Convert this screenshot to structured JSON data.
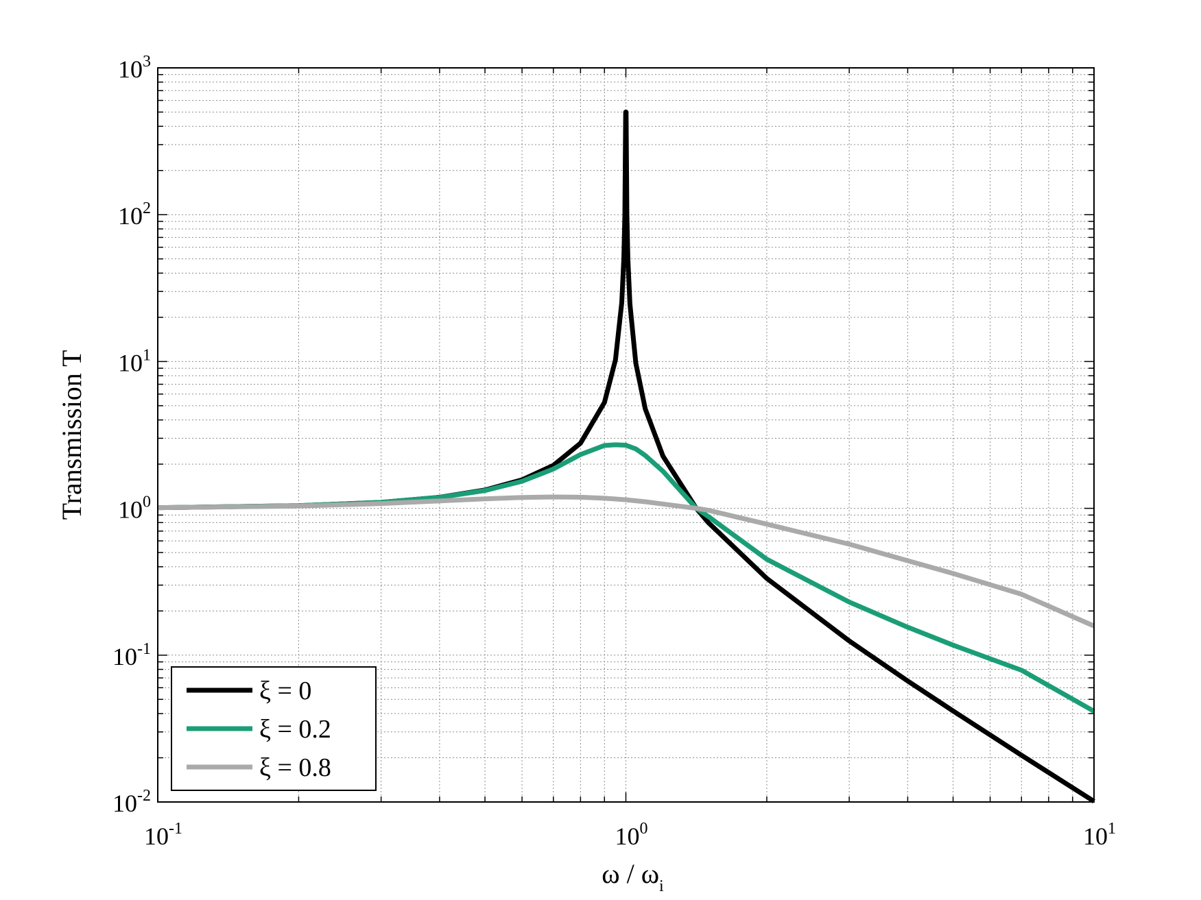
{
  "chart_data": {
    "type": "line",
    "xscale": "log",
    "yscale": "log",
    "xlim": [
      0.1,
      10
    ],
    "ylim": [
      0.01,
      1000
    ],
    "grid": true,
    "minor_grid": true,
    "legend_position": "bottom-left",
    "xlabel": "ω / ω",
    "xlabel_subscript": "i",
    "ylabel": "Transmission T",
    "x_ticks": [
      {
        "base": "10",
        "exp": "-1",
        "value": 0.1
      },
      {
        "base": "10",
        "exp": "0",
        "value": 1
      },
      {
        "base": "10",
        "exp": "1",
        "value": 10
      }
    ],
    "y_ticks": [
      {
        "base": "10",
        "exp": "-2",
        "value": 0.01
      },
      {
        "base": "10",
        "exp": "-1",
        "value": 0.1
      },
      {
        "base": "10",
        "exp": "0",
        "value": 1
      },
      {
        "base": "10",
        "exp": "1",
        "value": 10
      },
      {
        "base": "10",
        "exp": "2",
        "value": 100
      },
      {
        "base": "10",
        "exp": "3",
        "value": 1000
      }
    ],
    "series": [
      {
        "name": "ξ = 0",
        "xi": 0,
        "color": "#000000",
        "x": [
          0.1,
          0.2,
          0.3,
          0.4,
          0.5,
          0.6,
          0.7,
          0.8,
          0.9,
          0.95,
          0.98,
          0.99,
          0.995,
          0.999,
          1.0,
          1.001,
          1.005,
          1.01,
          1.02,
          1.05,
          1.1,
          1.2,
          1.414,
          1.5,
          2,
          3,
          4,
          5,
          7,
          10
        ],
        "y": [
          1.01,
          1.042,
          1.099,
          1.19,
          1.333,
          1.563,
          1.961,
          2.778,
          5.263,
          10.26,
          25.25,
          50.25,
          100.3,
          500,
          500,
          500,
          99.8,
          49.75,
          24.75,
          9.76,
          4.76,
          2.27,
          1.0,
          0.8,
          0.333,
          0.125,
          0.0667,
          0.0417,
          0.0208,
          0.0101
        ]
      },
      {
        "name": "ξ = 0.2",
        "xi": 0.2,
        "color": "#1b9e77",
        "x": [
          0.1,
          0.2,
          0.3,
          0.4,
          0.5,
          0.6,
          0.7,
          0.8,
          0.9,
          0.95,
          1.0,
          1.05,
          1.1,
          1.2,
          1.414,
          1.5,
          2,
          3,
          4,
          5,
          7,
          10
        ],
        "y": [
          1.01,
          1.042,
          1.098,
          1.187,
          1.322,
          1.529,
          1.853,
          2.324,
          2.68,
          2.71,
          2.69,
          2.54,
          2.29,
          1.79,
          1.0,
          0.88,
          0.45,
          0.23,
          0.155,
          0.117,
          0.079,
          0.0415
        ]
      },
      {
        "name": "ξ = 0.8",
        "xi": 0.8,
        "color": "#a9aaa9",
        "x": [
          0.1,
          0.2,
          0.3,
          0.4,
          0.5,
          0.6,
          0.7,
          0.8,
          0.9,
          1.0,
          1.1,
          1.2,
          1.414,
          1.5,
          2,
          3,
          4,
          5,
          7,
          10
        ],
        "y": [
          1.01,
          1.036,
          1.078,
          1.123,
          1.16,
          1.185,
          1.195,
          1.19,
          1.172,
          1.144,
          1.109,
          1.07,
          1.0,
          0.97,
          0.78,
          0.57,
          0.44,
          0.36,
          0.26,
          0.158
        ]
      }
    ]
  }
}
